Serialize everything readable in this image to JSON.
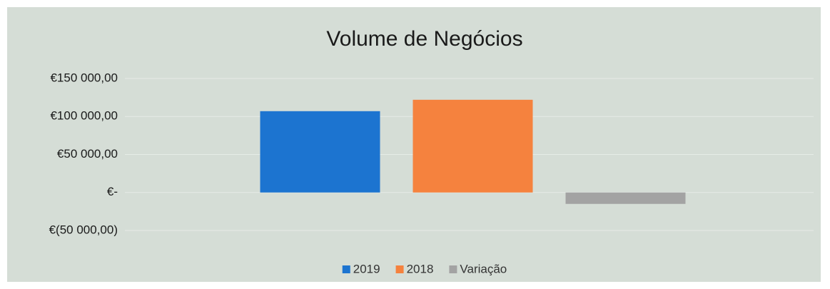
{
  "chart_data": {
    "type": "bar",
    "title": "Volume de Negócios",
    "categories": [
      null
    ],
    "series": [
      {
        "name": "2019",
        "color": "#1c74d0",
        "values": [
          107000
        ]
      },
      {
        "name": "2018",
        "color": "#f5823e",
        "values": [
          122000
        ]
      },
      {
        "name": "Variação",
        "color": "#a3a3a3",
        "values": [
          -15000
        ]
      }
    ],
    "ylim": [
      -50000,
      150000
    ],
    "yticks": [
      {
        "value": 150000,
        "label": "€150 000,00"
      },
      {
        "value": 100000,
        "label": "€100 000,00"
      },
      {
        "value": 50000,
        "label": "€50 000,00"
      },
      {
        "value": 0,
        "label": "€-"
      },
      {
        "value": -50000,
        "label": "€(50 000,00)"
      }
    ],
    "grid": true,
    "legend": "bottom"
  }
}
